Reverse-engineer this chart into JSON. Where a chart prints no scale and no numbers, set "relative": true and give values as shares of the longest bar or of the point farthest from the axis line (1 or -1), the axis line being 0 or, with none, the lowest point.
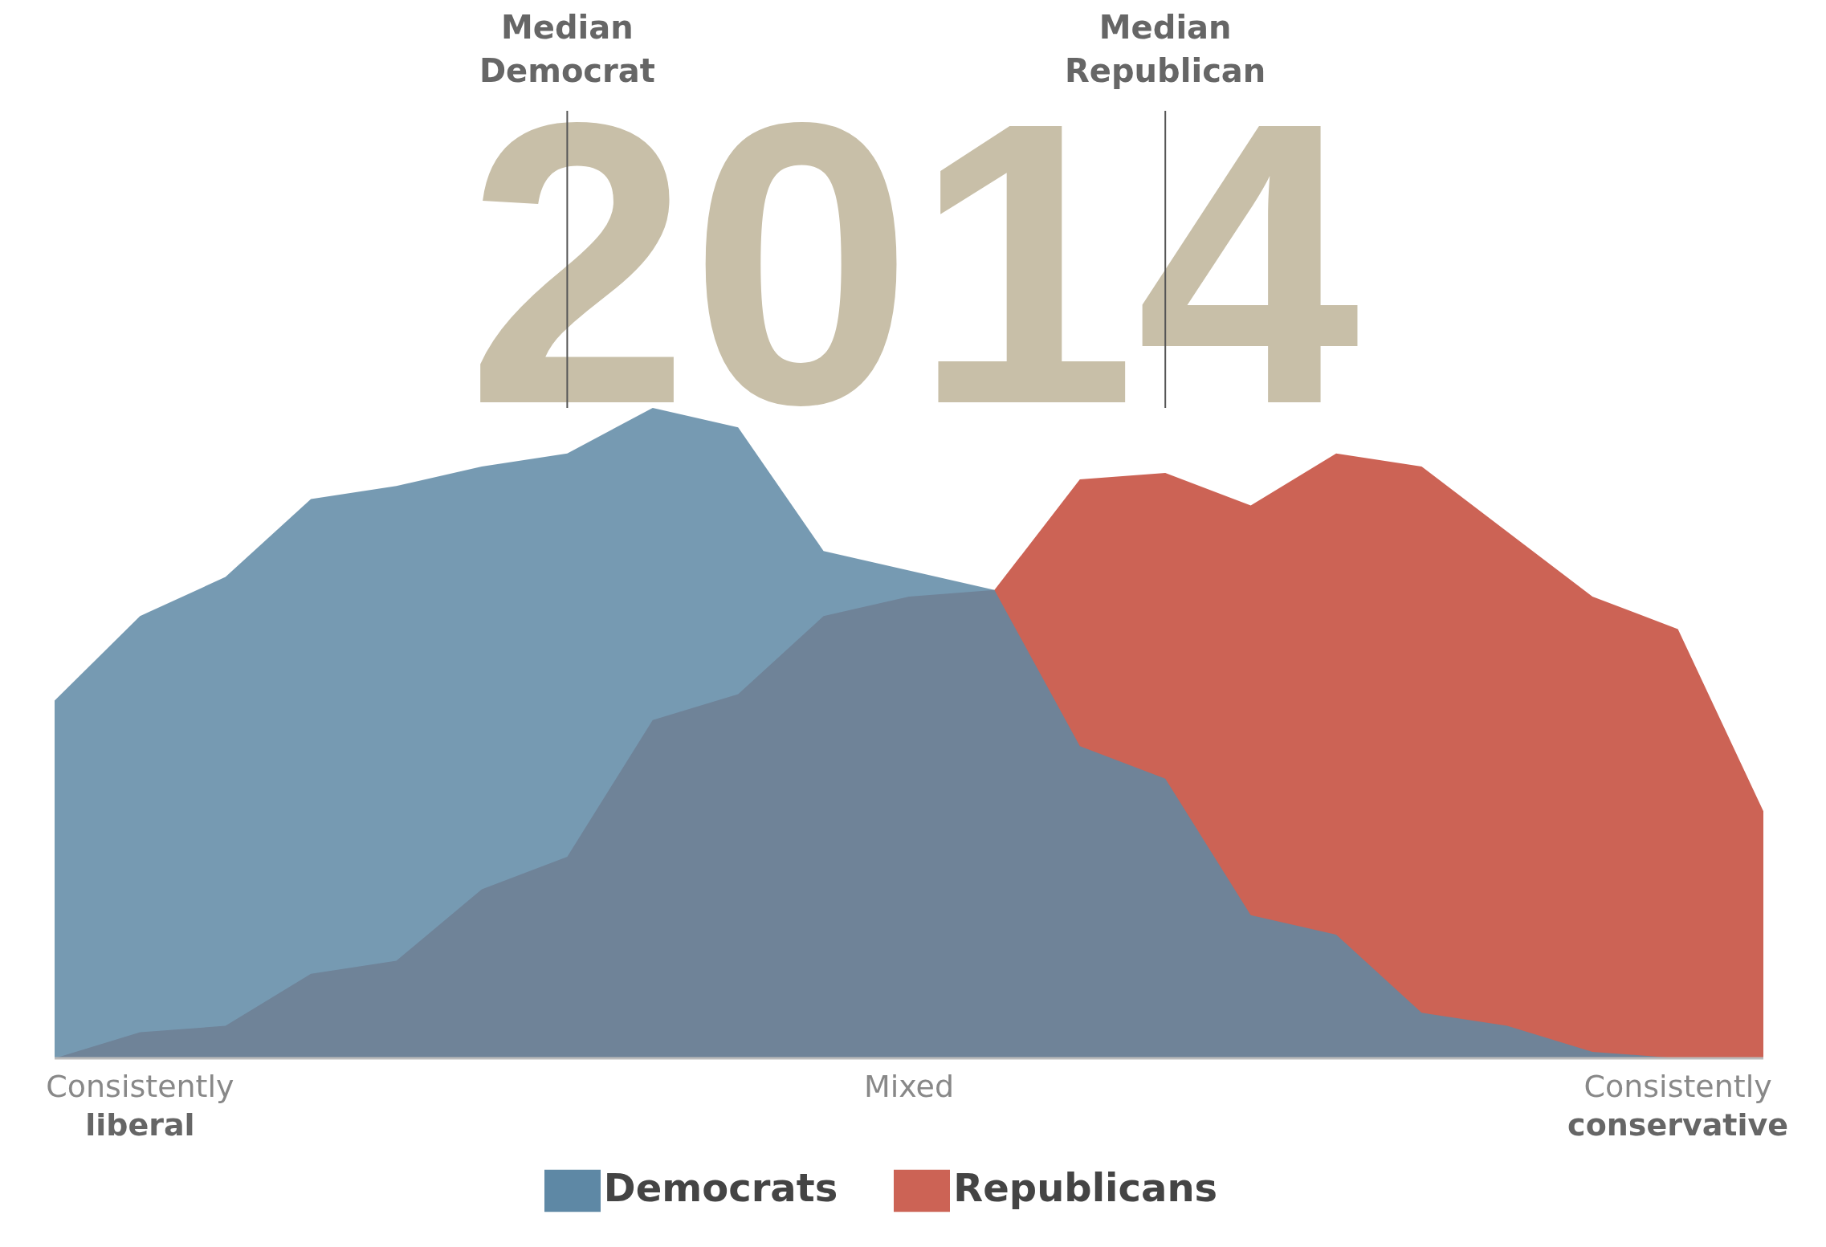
{
  "chart_data": {
    "type": "area",
    "relative": true,
    "categories": [
      null,
      "Consistently\nliberal",
      null,
      null,
      null,
      null,
      null,
      null,
      null,
      null,
      "Mixed",
      null,
      null,
      null,
      null,
      null,
      null,
      null,
      null,
      "Consistently\nconservative",
      null
    ],
    "series": [
      {
        "name": "Republicans",
        "color": "#cc6355",
        "values": [
          0,
          0.04,
          0.05,
          0.13,
          0.15,
          0.26,
          0.31,
          0.52,
          0.56,
          0.68,
          0.71,
          0.72,
          0.89,
          0.9,
          0.85,
          0.93,
          0.91,
          0.81,
          0.71,
          0.66,
          0.38
        ]
      },
      {
        "name": "Democrats",
        "color": "#5e88a5",
        "values": [
          0.55,
          0.68,
          0.74,
          0.86,
          0.88,
          0.91,
          0.93,
          1,
          0.97,
          0.78,
          0.75,
          0.72,
          0.48,
          0.43,
          0.22,
          0.19,
          0.07,
          0.05,
          0.01,
          0,
          0
        ]
      }
    ],
    "annotations": [
      "2014",
      "Median\nDemocrat",
      "Median\nRepublican"
    ],
    "legend": "bottom"
  }
}
